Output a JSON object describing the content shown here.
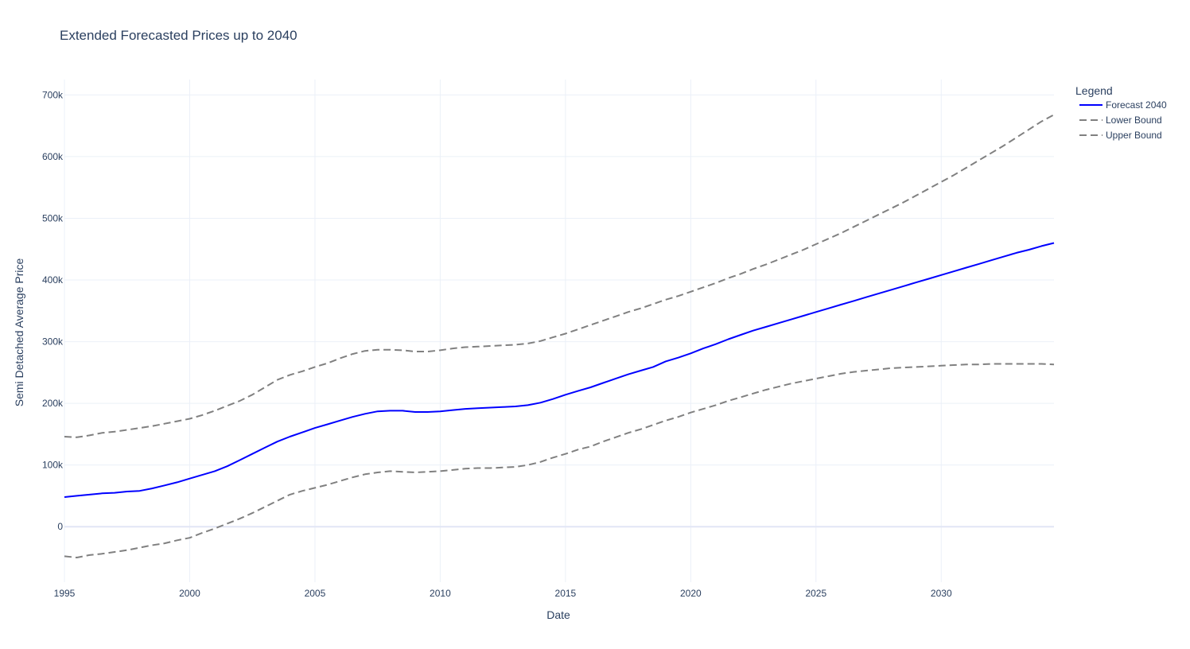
{
  "chart_data": {
    "type": "line",
    "title": "Extended Forecasted Prices up to 2040",
    "xlabel": "Date",
    "ylabel": "Semi Detached Average Price",
    "xlim": [
      1995,
      2034.5
    ],
    "ylim": [
      -90000,
      725000
    ],
    "x_ticks": [
      1995,
      2000,
      2005,
      2010,
      2015,
      2020,
      2025,
      2030
    ],
    "x_tick_labels": [
      "1995",
      "2000",
      "2005",
      "2010",
      "2015",
      "2020",
      "2025",
      "2030"
    ],
    "y_ticks": [
      0,
      100000,
      200000,
      300000,
      400000,
      500000,
      600000,
      700000
    ],
    "y_tick_labels": [
      "0",
      "100k",
      "200k",
      "300k",
      "400k",
      "500k",
      "600k",
      "700k"
    ],
    "grid": true,
    "legend": {
      "title": "Legend",
      "placement": "top-right-outside"
    },
    "series": [
      {
        "name": "Forecast 2040",
        "color": "#0000ff",
        "dash": "solid",
        "x": [
          1995,
          1995.5,
          1996,
          1996.5,
          1997,
          1997.5,
          1998,
          1998.5,
          1999,
          1999.5,
          2000,
          2000.5,
          2001,
          2001.5,
          2002,
          2002.5,
          2003,
          2003.5,
          2004,
          2004.5,
          2005,
          2005.5,
          2006,
          2006.5,
          2007,
          2007.5,
          2008,
          2008.5,
          2009,
          2009.5,
          2010,
          2010.5,
          2011,
          2011.5,
          2012,
          2012.5,
          2013,
          2013.5,
          2014,
          2014.5,
          2015,
          2015.5,
          2016,
          2016.5,
          2017,
          2017.5,
          2018,
          2018.5,
          2019,
          2019.5,
          2020,
          2020.5,
          2021,
          2021.5,
          2022,
          2022.5,
          2023,
          2023.5,
          2024,
          2024.5,
          2025,
          2025.5,
          2026,
          2026.5,
          2027,
          2027.5,
          2028,
          2028.5,
          2029,
          2029.5,
          2030,
          2030.5,
          2031,
          2031.5,
          2032,
          2032.5,
          2033,
          2033.5,
          2034,
          2034.5
        ],
        "values": [
          48000,
          50000,
          52000,
          54000,
          55000,
          57000,
          58000,
          62000,
          67000,
          72000,
          78000,
          84000,
          90000,
          98000,
          108000,
          118000,
          128000,
          138000,
          146000,
          153000,
          160000,
          166000,
          172000,
          178000,
          183000,
          187000,
          188000,
          188000,
          186000,
          186000,
          187000,
          189000,
          191000,
          192000,
          193000,
          194000,
          195000,
          197000,
          201000,
          207000,
          214000,
          220000,
          226000,
          233000,
          240000,
          247000,
          253000,
          259000,
          268000,
          274000,
          281000,
          289000,
          296000,
          304000,
          311000,
          318000,
          324000,
          330000,
          336000,
          342000,
          348000,
          354000,
          360000,
          366000,
          372000,
          378000,
          384000,
          390000,
          396000,
          402000,
          408000,
          414000,
          420000,
          426000,
          432000,
          438000,
          444000,
          449000,
          455000,
          460000
        ]
      },
      {
        "name": "Lower Bound",
        "color": "#808080",
        "dash": "dash",
        "x": [
          1995,
          1995.5,
          1996,
          1996.5,
          1997,
          1997.5,
          1998,
          1998.5,
          1999,
          1999.5,
          2000,
          2000.5,
          2001,
          2001.5,
          2002,
          2002.5,
          2003,
          2003.5,
          2004,
          2004.5,
          2005,
          2005.5,
          2006,
          2006.5,
          2007,
          2007.5,
          2008,
          2008.5,
          2009,
          2009.5,
          2010,
          2010.5,
          2011,
          2011.5,
          2012,
          2012.5,
          2013,
          2013.5,
          2014,
          2014.5,
          2015,
          2015.5,
          2016,
          2016.5,
          2017,
          2017.5,
          2018,
          2018.5,
          2019,
          2019.5,
          2020,
          2020.5,
          2021,
          2021.5,
          2022,
          2022.5,
          2023,
          2023.5,
          2024,
          2024.5,
          2025,
          2025.5,
          2026,
          2026.5,
          2027,
          2027.5,
          2028,
          2028.5,
          2029,
          2029.5,
          2030,
          2030.5,
          2031,
          2031.5,
          2032,
          2032.5,
          2033,
          2033.5,
          2034,
          2034.5
        ],
        "values": [
          -48000,
          -50000,
          -46000,
          -44000,
          -41000,
          -38000,
          -34000,
          -30000,
          -27000,
          -22000,
          -18000,
          -10000,
          -3000,
          5000,
          13000,
          22000,
          32000,
          42000,
          52000,
          58000,
          63000,
          68000,
          74000,
          80000,
          85000,
          88000,
          90000,
          89000,
          88000,
          89000,
          90000,
          92000,
          94000,
          95000,
          95000,
          96000,
          97000,
          100000,
          105000,
          112000,
          118000,
          125000,
          130000,
          138000,
          145000,
          152000,
          158000,
          165000,
          172000,
          178000,
          185000,
          191000,
          197000,
          204000,
          210000,
          216000,
          222000,
          227000,
          232000,
          236000,
          240000,
          244000,
          248000,
          251000,
          253000,
          255000,
          257000,
          258000,
          259000,
          260000,
          261000,
          262000,
          263000,
          263000,
          264000,
          264000,
          264000,
          264000,
          264000,
          263000
        ]
      },
      {
        "name": "Upper Bound",
        "color": "#808080",
        "dash": "dash",
        "x": [
          1995,
          1995.5,
          1996,
          1996.5,
          1997,
          1997.5,
          1998,
          1998.5,
          1999,
          1999.5,
          2000,
          2000.5,
          2001,
          2001.5,
          2002,
          2002.5,
          2003,
          2003.5,
          2004,
          2004.5,
          2005,
          2005.5,
          2006,
          2006.5,
          2007,
          2007.5,
          2008,
          2008.5,
          2009,
          2009.5,
          2010,
          2010.5,
          2011,
          2011.5,
          2012,
          2012.5,
          2013,
          2013.5,
          2014,
          2014.5,
          2015,
          2015.5,
          2016,
          2016.5,
          2017,
          2017.5,
          2018,
          2018.5,
          2019,
          2019.5,
          2020,
          2020.5,
          2021,
          2021.5,
          2022,
          2022.5,
          2023,
          2023.5,
          2024,
          2024.5,
          2025,
          2025.5,
          2026,
          2026.5,
          2027,
          2027.5,
          2028,
          2028.5,
          2029,
          2029.5,
          2030,
          2030.5,
          2031,
          2031.5,
          2032,
          2032.5,
          2033,
          2033.5,
          2034,
          2034.5
        ],
        "values": [
          146000,
          145000,
          148000,
          152000,
          154000,
          157000,
          160000,
          163000,
          167000,
          171000,
          175000,
          181000,
          188000,
          196000,
          204000,
          214000,
          226000,
          238000,
          246000,
          252000,
          259000,
          265000,
          273000,
          280000,
          285000,
          287000,
          287000,
          286000,
          284000,
          284000,
          286000,
          289000,
          291000,
          292000,
          293000,
          294000,
          295000,
          297000,
          301000,
          307000,
          313000,
          320000,
          327000,
          334000,
          341000,
          348000,
          354000,
          361000,
          368000,
          374000,
          381000,
          388000,
          395000,
          403000,
          410000,
          418000,
          425000,
          433000,
          441000,
          449000,
          458000,
          467000,
          476000,
          486000,
          496000,
          506000,
          516000,
          526000,
          537000,
          548000,
          559000,
          570000,
          582000,
          594000,
          606000,
          618000,
          631000,
          644000,
          657000,
          668000
        ]
      }
    ]
  }
}
